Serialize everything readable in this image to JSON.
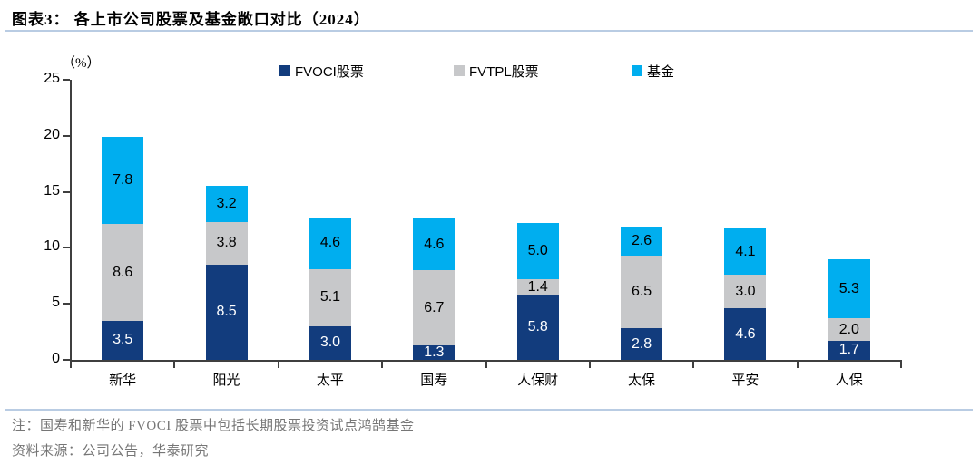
{
  "title": "图表3：  各上市公司股票及基金敞口对比（2024）",
  "unit_label": "（%）",
  "note": "注：国寿和新华的 FVOCI 股票中包括长期股票投资试点鸿鹄基金",
  "source": "资料来源：公司公告，华泰研究",
  "colors": {
    "navy": "#123c7d",
    "gray": "#c7c8ca",
    "cyan": "#00aeef",
    "axis": "#3f3f3f",
    "divider": "#b9cce3",
    "note_text": "#767676"
  },
  "chart_data": {
    "type": "bar",
    "stacked": true,
    "title": "各上市公司股票及基金敞口对比（2024）",
    "ylabel": "（%）",
    "ylim": [
      0,
      25
    ],
    "yticks": [
      0,
      5,
      10,
      15,
      20,
      25
    ],
    "grid": false,
    "legend_position": "top",
    "categories": [
      "新华",
      "阳光",
      "太平",
      "国寿",
      "人保财",
      "太保",
      "平安",
      "人保"
    ],
    "series": [
      {
        "name": "FVOCI股票",
        "color_key": "navy",
        "label_color": "#ffffff",
        "values": [
          3.5,
          8.5,
          3.0,
          1.3,
          5.8,
          2.8,
          4.6,
          1.7
        ]
      },
      {
        "name": "FVTPL股票",
        "color_key": "gray",
        "label_color": "#000000",
        "values": [
          8.6,
          3.8,
          5.1,
          6.7,
          1.4,
          6.5,
          3.0,
          2.0
        ]
      },
      {
        "name": "基金",
        "color_key": "cyan",
        "label_color": "#000000",
        "values": [
          7.8,
          3.2,
          4.6,
          4.6,
          5.0,
          2.6,
          4.1,
          5.3
        ]
      }
    ],
    "totals": [
      19.9,
      15.5,
      12.7,
      12.6,
      12.2,
      11.9,
      11.7,
      9.0
    ]
  }
}
